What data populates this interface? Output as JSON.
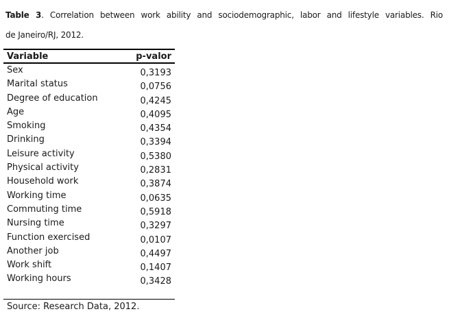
{
  "caption": {
    "title_bold": "Table 3",
    "line1_rest": ". Correlation between work ability and sociodemographic, labor and lifestyle variables. Rio",
    "line2": "de Janeiro/RJ, 2012."
  },
  "table": {
    "columns": {
      "variable": "Variable",
      "p_valor": "p-valor"
    },
    "rows": [
      {
        "variable": "Sex",
        "p_valor": "0,3193"
      },
      {
        "variable": "Marital status",
        "p_valor": "0,0756"
      },
      {
        "variable": "Degree of education",
        "p_valor": "0,4245"
      },
      {
        "variable": "Age",
        "p_valor": "0,4095"
      },
      {
        "variable": "Smoking",
        "p_valor": "0,4354"
      },
      {
        "variable": "Drinking",
        "p_valor": "0,3394"
      },
      {
        "variable": "Leisure activity",
        "p_valor": "0,5380"
      },
      {
        "variable": "Physical activity",
        "p_valor": "0,2831"
      },
      {
        "variable": "Household work",
        "p_valor": "0,3874"
      },
      {
        "variable": "Working time",
        "p_valor": "0,0635"
      },
      {
        "variable": "Commuting time",
        "p_valor": "0,5918"
      },
      {
        "variable": "Nursing time",
        "p_valor": "0,3297"
      },
      {
        "variable": "Function exercised",
        "p_valor": "0,0107"
      },
      {
        "variable": "Another job",
        "p_valor": "0,4497"
      },
      {
        "variable": "Work shift",
        "p_valor": "0,1407"
      },
      {
        "variable": "Working hours",
        "p_valor": "0,3428"
      }
    ]
  },
  "source_note": "Source: Research Data, 2012.",
  "colors": {
    "text": "#1a1a1a",
    "rule": "#000000",
    "background": "#ffffff"
  }
}
